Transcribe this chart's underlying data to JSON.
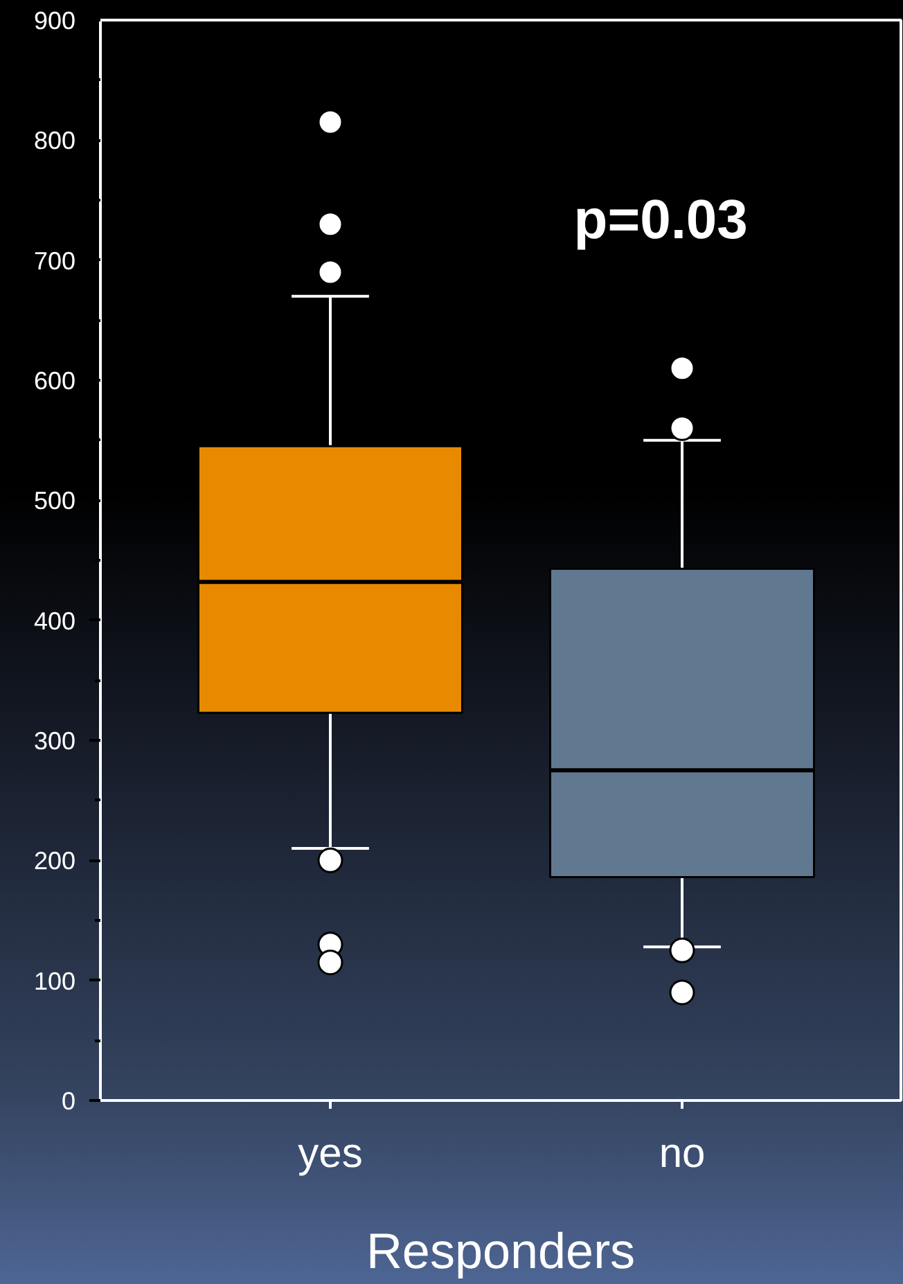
{
  "chart_data": {
    "type": "box",
    "categories": [
      "yes",
      "no"
    ],
    "colors": [
      "#e88a00",
      "#617891"
    ],
    "boxes": [
      {
        "low": 210,
        "q1": 323,
        "median": 432,
        "q3": 545,
        "high": 670,
        "outliers": [
          815,
          730,
          690,
          200,
          130,
          115
        ]
      },
      {
        "low": 128,
        "q1": 186,
        "median": 275,
        "q3": 443,
        "high": 550,
        "outliers": [
          610,
          560,
          125,
          90
        ]
      }
    ],
    "xlabel": "Responders",
    "annotations": [
      "p=0.03"
    ],
    "marker": "circle",
    "ylim": [
      0,
      900
    ],
    "yticks": [
      0,
      {
        "value": 50,
        "label": null
      },
      100,
      {
        "value": 150,
        "label": null
      },
      200,
      {
        "value": 250,
        "label": null
      },
      300,
      {
        "value": 350,
        "label": null
      },
      400,
      {
        "value": 450,
        "label": null
      },
      500,
      {
        "value": 550,
        "label": null
      },
      600,
      {
        "value": 650,
        "label": null
      },
      700,
      {
        "value": 750,
        "label": null
      },
      800,
      {
        "value": 850,
        "label": null
      },
      900
    ]
  }
}
